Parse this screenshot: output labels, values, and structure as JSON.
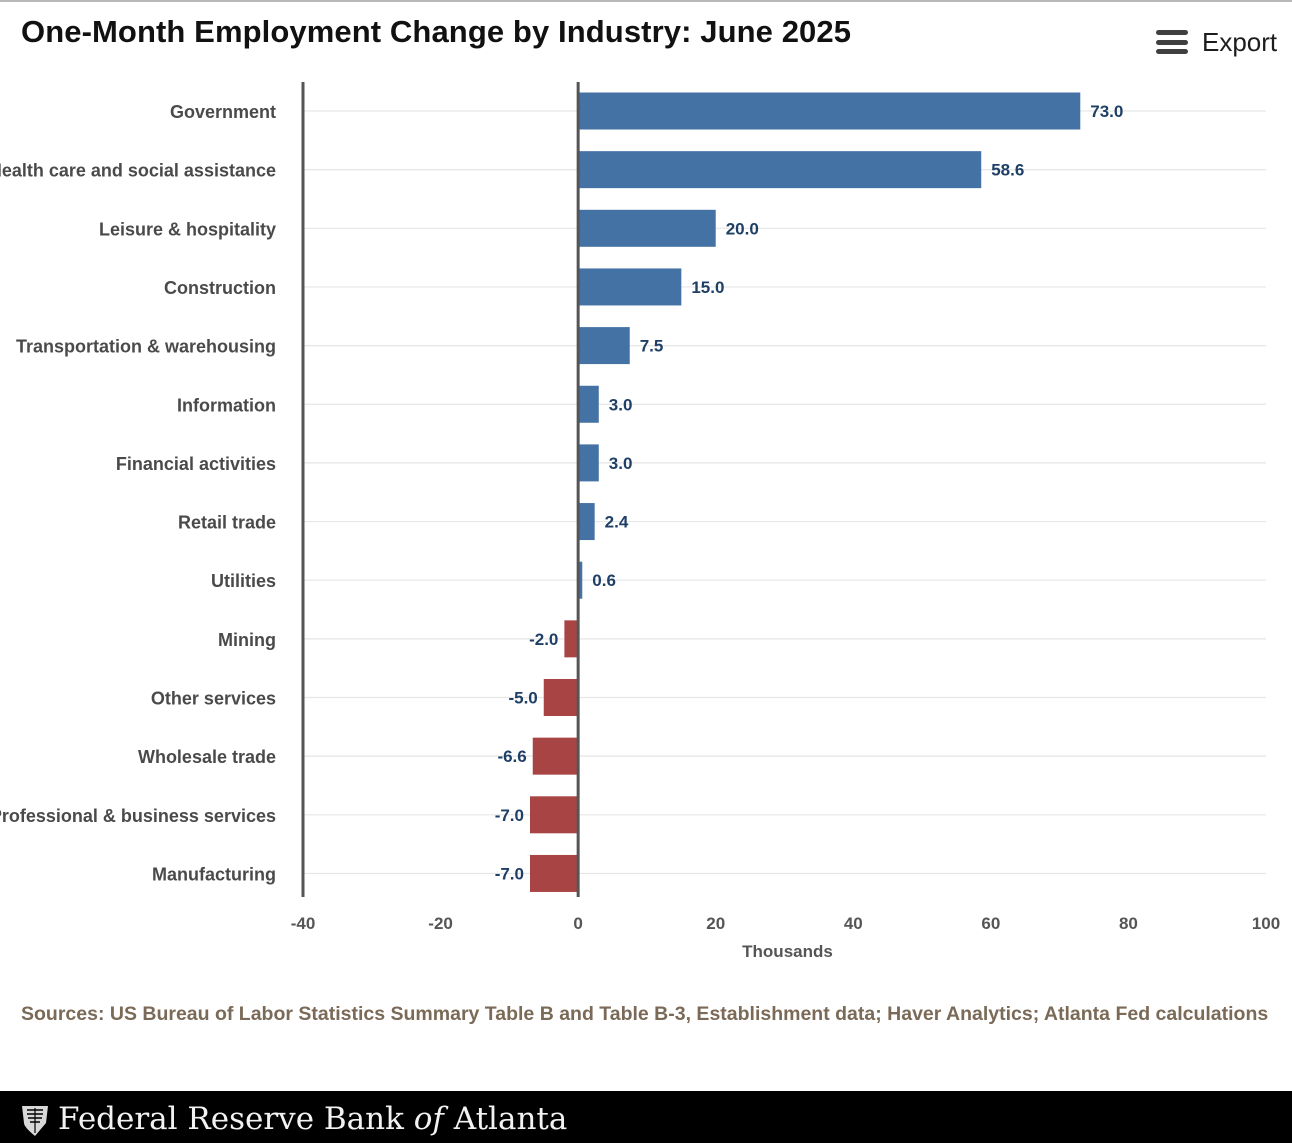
{
  "header": {
    "title": "One-Month Employment Change by Industry: June 2025",
    "export_label": "Export",
    "export_icon": "menu-icon"
  },
  "chart_data": {
    "type": "bar",
    "orientation": "horizontal",
    "title": "One-Month Employment Change by Industry: June 2025",
    "xlabel": "Thousands",
    "ylabel": "",
    "xlim": [
      -40,
      100
    ],
    "xticks": [
      -40,
      -20,
      0,
      20,
      40,
      60,
      80,
      100
    ],
    "grid": true,
    "categories": [
      "Government",
      "Health care and social assistance",
      "Leisure & hospitality",
      "Construction",
      "Transportation & warehousing",
      "Information",
      "Financial activities",
      "Retail trade",
      "Utilities",
      "Mining",
      "Other services",
      "Wholesale trade",
      "Professional & business services",
      "Manufacturing"
    ],
    "values": [
      73.0,
      58.6,
      20.0,
      15.0,
      7.5,
      3.0,
      3.0,
      2.4,
      0.6,
      -2.0,
      -5.0,
      -6.6,
      -7.0,
      -7.0
    ],
    "colors": {
      "positive": "#4472a5",
      "negative": "#a84444",
      "label": "#1e3f66"
    }
  },
  "footer": {
    "sources": "Sources: US Bureau of Labor Statistics Summary Table B and Table B-3, Establishment data; Haver Analytics; Atlanta Fed calculations",
    "brand_pre": "Federal Reserve Bank ",
    "brand_of": "of",
    "brand_post": " Atlanta",
    "brand_icon": "seal-icon"
  }
}
